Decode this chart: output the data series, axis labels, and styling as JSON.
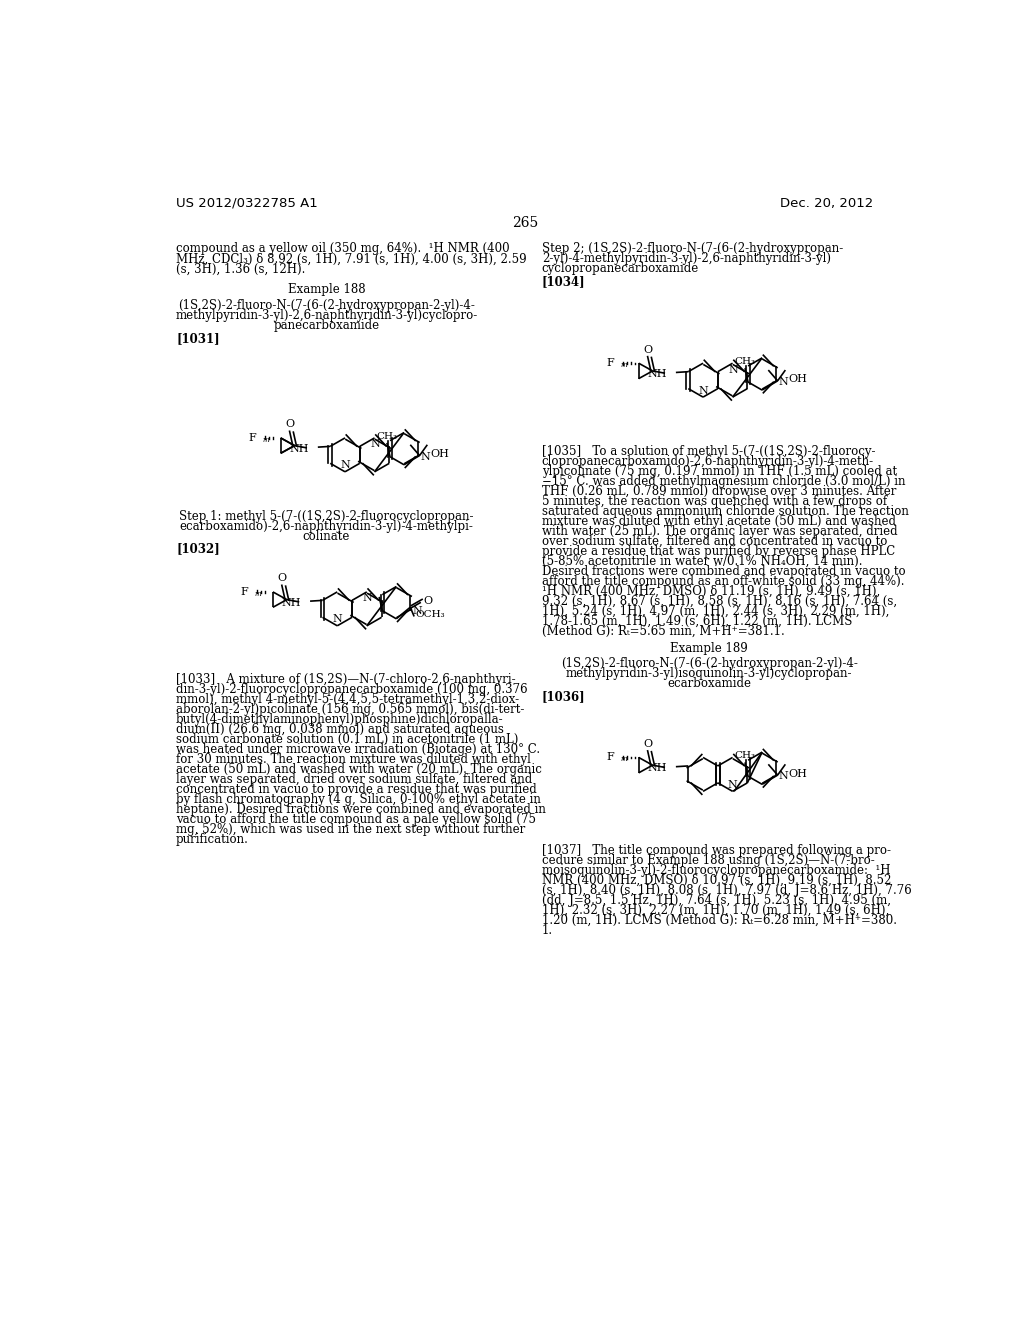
{
  "page_number": "265",
  "header_left": "US 2012/0322785 A1",
  "header_right": "Dec. 20, 2012",
  "background_color": "#ffffff",
  "text_color": "#000000"
}
